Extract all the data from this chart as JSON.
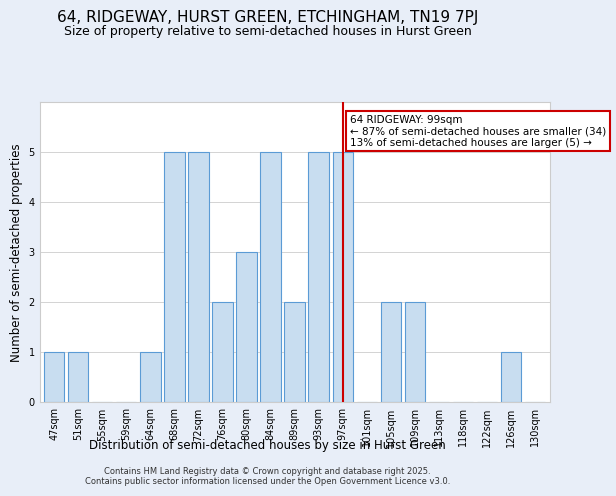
{
  "title": "64, RIDGEWAY, HURST GREEN, ETCHINGHAM, TN19 7PJ",
  "subtitle": "Size of property relative to semi-detached houses in Hurst Green",
  "xlabel": "Distribution of semi-detached houses by size in Hurst Green",
  "ylabel": "Number of semi-detached properties",
  "bins": [
    "47sqm",
    "51sqm",
    "55sqm",
    "59sqm",
    "64sqm",
    "68sqm",
    "72sqm",
    "76sqm",
    "80sqm",
    "84sqm",
    "89sqm",
    "93sqm",
    "97sqm",
    "101sqm",
    "105sqm",
    "109sqm",
    "113sqm",
    "118sqm",
    "122sqm",
    "126sqm",
    "130sqm"
  ],
  "counts": [
    1,
    1,
    0,
    0,
    1,
    5,
    5,
    2,
    3,
    5,
    2,
    5,
    5,
    0,
    2,
    2,
    0,
    0,
    0,
    1,
    0
  ],
  "bar_color": "#c8ddf0",
  "bar_edge_color": "#5b9bd5",
  "subject_bin_index": 12,
  "vline_color": "#cc0000",
  "annotation_text": "64 RIDGEWAY: 99sqm\n← 87% of semi-detached houses are smaller (34)\n13% of semi-detached houses are larger (5) →",
  "annotation_box_color": "#cc0000",
  "ylim": [
    0,
    6
  ],
  "yticks": [
    0,
    1,
    2,
    3,
    4,
    5,
    6
  ],
  "background_color": "#e8eef8",
  "plot_bg_color": "#ffffff",
  "footer": "Contains HM Land Registry data © Crown copyright and database right 2025.\nContains public sector information licensed under the Open Government Licence v3.0.",
  "title_fontsize": 11,
  "subtitle_fontsize": 9,
  "tick_fontsize": 7,
  "ylabel_fontsize": 8.5,
  "xlabel_fontsize": 8.5,
  "footer_fontsize": 6,
  "ann_fontsize": 7.5
}
